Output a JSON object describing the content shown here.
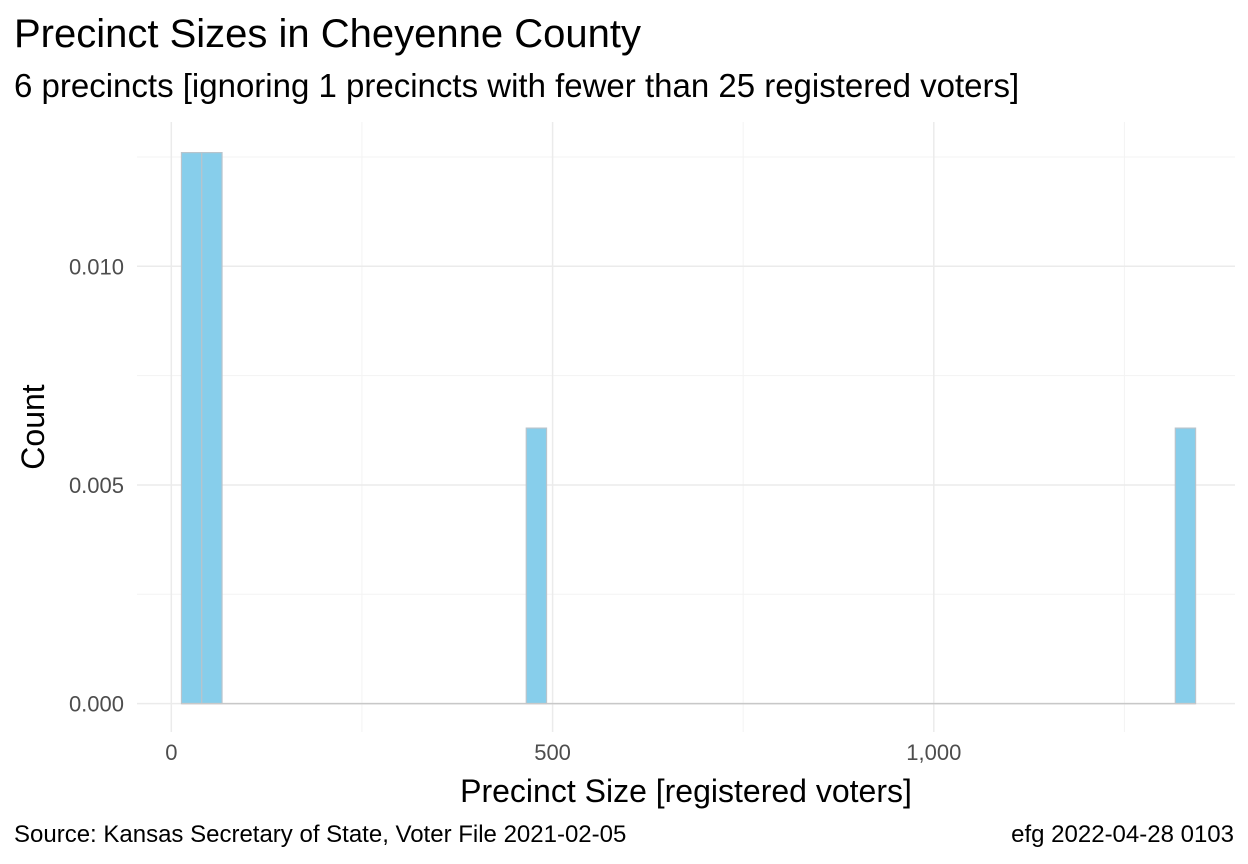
{
  "header": {
    "title": "Precinct Sizes in Cheyenne County",
    "subtitle": "6 precincts [ignoring 1 precincts with fewer than 25 registered voters]"
  },
  "footer": {
    "source": "Source:  Kansas Secretary of State, Voter File  2021-02-05",
    "credit": "efg 2022-04-28 0103"
  },
  "colors": {
    "bar_fill": "#87CEEB",
    "bar_stroke": "#B8C4CC",
    "grid_major": "#EBEBEB",
    "grid_minor": "#F3F3F3",
    "baseline": "#C8C8C8"
  },
  "chart_data": {
    "type": "bar",
    "subtype": "histogram",
    "xlabel": "Precinct Size [registered voters]",
    "ylabel": "Count",
    "xlim": [
      -45,
      1395
    ],
    "ylim": [
      -0.00065,
      0.0133
    ],
    "x_ticks": [
      {
        "value": 0,
        "label": "0"
      },
      {
        "value": 500,
        "label": "500"
      },
      {
        "value": 1000,
        "label": "1,000"
      }
    ],
    "x_minor_ticks": [
      250,
      750,
      1250
    ],
    "y_ticks": [
      {
        "value": 0.0,
        "label": "0.000"
      },
      {
        "value": 0.005,
        "label": "0.005"
      },
      {
        "value": 0.01,
        "label": "0.010"
      }
    ],
    "y_minor_ticks": [
      0.0025,
      0.0075,
      0.0125
    ],
    "bin_width": 26.6,
    "bins": [
      {
        "start": 13.3,
        "end": 39.9,
        "value": 0.0126
      },
      {
        "start": 39.9,
        "end": 66.5,
        "value": 0.0126
      },
      {
        "start": 465.5,
        "end": 492.1,
        "value": 0.0063
      },
      {
        "start": 1316.7,
        "end": 1343.3,
        "value": 0.0063
      }
    ],
    "grid": true,
    "legend": "none"
  }
}
